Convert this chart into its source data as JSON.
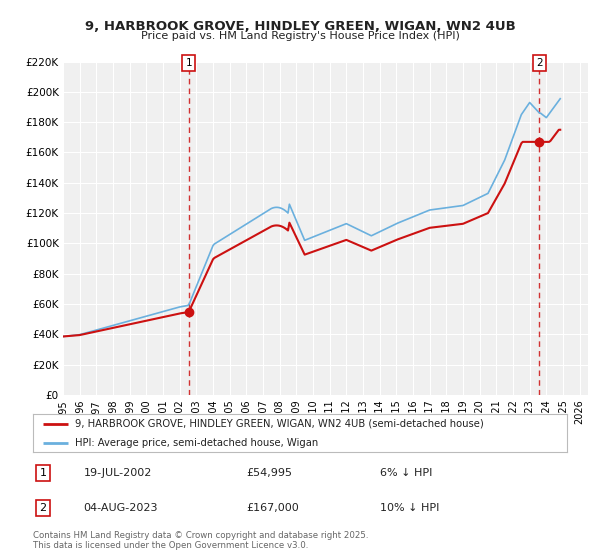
{
  "title": "9, HARBROOK GROVE, HINDLEY GREEN, WIGAN, WN2 4UB",
  "subtitle": "Price paid vs. HM Land Registry's House Price Index (HPI)",
  "ylim": [
    0,
    220000
  ],
  "xlim_start": 1995.0,
  "xlim_end": 2026.5,
  "yticks": [
    0,
    20000,
    40000,
    60000,
    80000,
    100000,
    120000,
    140000,
    160000,
    180000,
    200000,
    220000
  ],
  "ytick_labels": [
    "£0",
    "£20K",
    "£40K",
    "£60K",
    "£80K",
    "£100K",
    "£120K",
    "£140K",
    "£160K",
    "£180K",
    "£200K",
    "£220K"
  ],
  "xticks": [
    1995,
    1996,
    1997,
    1998,
    1999,
    2000,
    2001,
    2002,
    2003,
    2004,
    2005,
    2006,
    2007,
    2008,
    2009,
    2010,
    2011,
    2012,
    2013,
    2014,
    2015,
    2016,
    2017,
    2018,
    2019,
    2020,
    2021,
    2022,
    2023,
    2024,
    2025,
    2026
  ],
  "marker1_x": 2002.54,
  "marker1_y": 54995,
  "marker2_x": 2023.59,
  "marker2_y": 167000,
  "marker1_date": "19-JUL-2002",
  "marker1_price": "£54,995",
  "marker1_hpi": "6% ↓ HPI",
  "marker2_date": "04-AUG-2023",
  "marker2_price": "£167,000",
  "marker2_hpi": "10% ↓ HPI",
  "hpi_color": "#6ab0de",
  "price_color": "#cc1111",
  "background_color": "#f0f0f0",
  "grid_color": "#ffffff",
  "legend_label_price": "9, HARBROOK GROVE, HINDLEY GREEN, WIGAN, WN2 4UB (semi-detached house)",
  "legend_label_hpi": "HPI: Average price, semi-detached house, Wigan",
  "footer": "Contains HM Land Registry data © Crown copyright and database right 2025.\nThis data is licensed under the Open Government Licence v3.0."
}
